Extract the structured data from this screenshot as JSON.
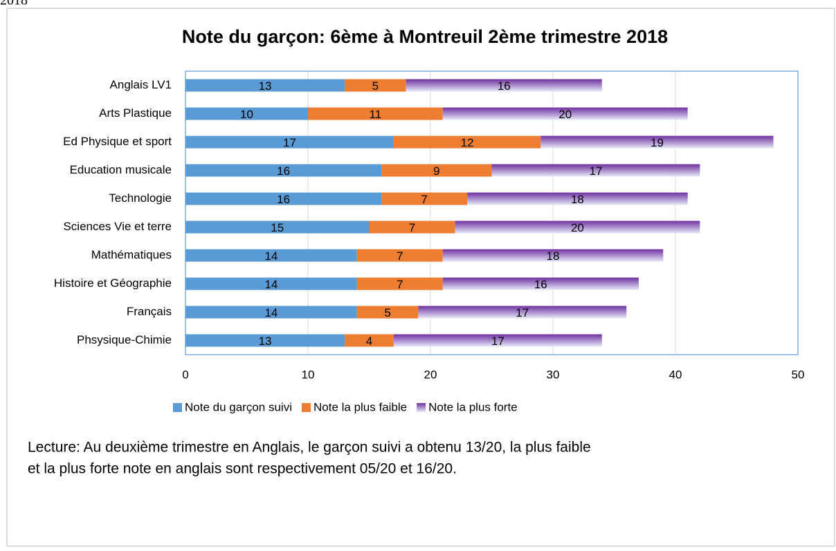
{
  "header_fragment": "2018",
  "chart_data": {
    "type": "stacked-bar-horizontal",
    "title": "Note du garçon: 6ème à Montreuil 2ème trimestre 2018",
    "categories": [
      "Anglais LV1",
      "Arts Plastique",
      "Ed Physique et sport",
      "Education musicale",
      "Technologie",
      "Sciences Vie et terre",
      "Mathématiques",
      "Histoire et Géographie",
      "Français",
      "Phsysique-Chimie"
    ],
    "series": [
      {
        "name": "Note du garçon suivi",
        "color": "#5b9bd5",
        "values": [
          13,
          10,
          17,
          16,
          16,
          15,
          14,
          14,
          14,
          13
        ]
      },
      {
        "name": "Note la plus faible",
        "color": "#ed7d31",
        "values": [
          5,
          11,
          12,
          9,
          7,
          7,
          7,
          7,
          5,
          4
        ]
      },
      {
        "name": "Note la plus forte",
        "color": "#7030a0",
        "values": [
          16,
          20,
          19,
          17,
          18,
          20,
          18,
          16,
          17,
          17
        ]
      }
    ],
    "xlim": [
      0,
      50
    ],
    "xticks": [
      0,
      10,
      20,
      30,
      40,
      50
    ],
    "grid": true,
    "legend": "bottom",
    "annotation": [
      "Lecture: Au deuxième trimestre en Anglais, le garçon suivi a obtenu 13/20, la plus faible",
      "et la plus forte note en anglais sont respectivement 05/20 et 16/20."
    ]
  }
}
